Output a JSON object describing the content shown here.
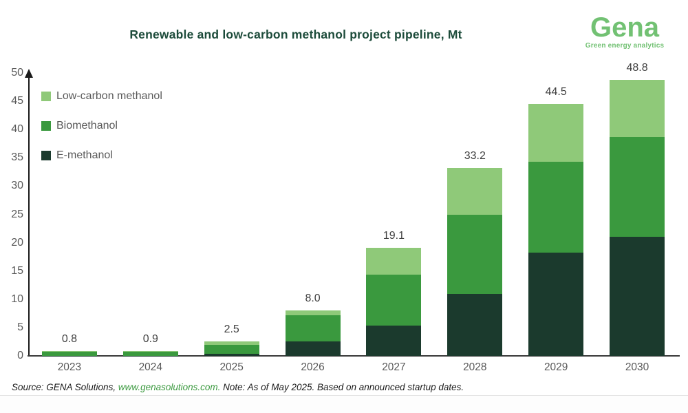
{
  "header": {
    "title": "Renewable and low-carbon methanol project pipeline, Mt",
    "logo_name": "Gena",
    "logo_tagline": "Green energy analytics"
  },
  "chart_data": {
    "type": "bar",
    "stacked": true,
    "title": "Renewable and low-carbon methanol project pipeline, Mt",
    "unit": "Mt",
    "categories": [
      "2023",
      "2024",
      "2025",
      "2026",
      "2027",
      "2028",
      "2029",
      "2030"
    ],
    "series": [
      {
        "name": "E-methanol",
        "color": "#1b3a2d",
        "values": [
          0.05,
          0.05,
          0.35,
          2.6,
          5.3,
          11.0,
          18.3,
          21.1
        ]
      },
      {
        "name": "Biomethanol",
        "color": "#3a993e",
        "values": [
          0.65,
          0.7,
          1.65,
          4.6,
          9.1,
          14.0,
          16.0,
          17.6
        ]
      },
      {
        "name": "Low-carbon methanol",
        "color": "#8fc979",
        "values": [
          0.1,
          0.15,
          0.5,
          0.8,
          4.7,
          8.2,
          10.2,
          10.1
        ]
      }
    ],
    "totals_labels": [
      "0.8",
      "0.9",
      "2.5",
      "8.0",
      "19.1",
      "33.2",
      "44.5",
      "48.8"
    ],
    "legend": [
      {
        "label": "Low-carbon methanol",
        "color": "#8fc979"
      },
      {
        "label": "Biomethanol",
        "color": "#3a993e"
      },
      {
        "label": "E-methanol",
        "color": "#1b3a2d"
      }
    ],
    "legend_position": "top-left",
    "ylim": [
      0,
      50
    ],
    "ytick_step": 5,
    "grid": false,
    "xlabel": "",
    "ylabel": ""
  },
  "footer": {
    "source_prefix": "Source: GENA Solutions, ",
    "source_link": "www.genasolutions.com.",
    "note": " Note: As of May 2025. Based on announced startup dates."
  },
  "colors": {
    "title": "#1c4b3a",
    "logo": "#72c173",
    "axis_text": "#595959",
    "data_label": "#404040",
    "link": "#3a993e"
  }
}
